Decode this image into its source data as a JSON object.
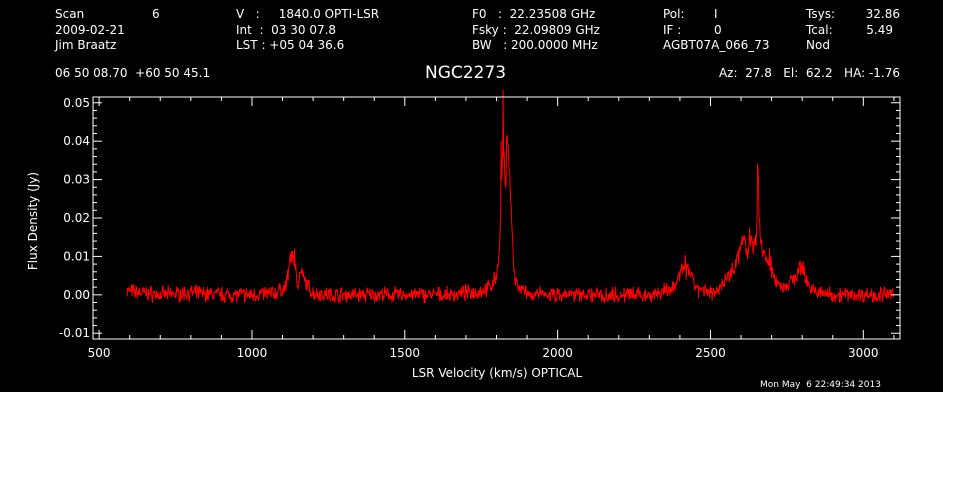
{
  "header": {
    "col1": [
      {
        "label": "Scan",
        "value": "6"
      },
      {
        "label": "2009-02-21",
        "value": ""
      },
      {
        "label": "Jim Braatz",
        "value": ""
      }
    ],
    "col2": [
      "V   :     1840.0 OPTI-LSR",
      "Int  :  03 30 07.8",
      "LST : +05 04 36.6"
    ],
    "col3": [
      "F0   :  22.23508 GHz",
      "Fsky :  22.09809 GHz",
      "BW   : 200.0000 MHz"
    ],
    "col4": [
      {
        "label": "Pol:",
        "value": "I"
      },
      {
        "label": "IF :",
        "value": "0"
      },
      {
        "label": "AGBT07A_066_73",
        "value": ""
      }
    ],
    "col5": [
      {
        "label": "Tsys:",
        "value": "32.86"
      },
      {
        "label": "Tcal:",
        "value": "5.49"
      },
      {
        "label": "Nod",
        "value": ""
      }
    ],
    "coords": "06 50 08.70  +60 50 45.1",
    "source": "NGC2273",
    "azelha": "Az:  27.8   El:  62.2   HA: -1.76"
  },
  "timestamp": "Mon May  6 22:49:34 2013",
  "colors": {
    "background": "#000000",
    "axes": "#ffffff",
    "spectrum": "#ff0000"
  },
  "chart_data": {
    "type": "line",
    "title": "NGC2273",
    "xlabel": "LSR Velocity (km/s) OPTICAL",
    "ylabel": "Flux Density (Jy)",
    "xlim": [
      480,
      3120
    ],
    "ylim": [
      -0.0115,
      0.0515
    ],
    "xticks": [
      500,
      1000,
      1500,
      2000,
      2500,
      3000
    ],
    "xtick_labels": [
      "500",
      "1000",
      "1500",
      "2000",
      "2500",
      "3000"
    ],
    "yticks": [
      -0.01,
      0.0,
      0.01,
      0.02,
      0.03,
      0.04,
      0.05
    ],
    "ytick_labels": [
      "-0.01",
      "0.00",
      "0.01",
      "0.02",
      "0.03",
      "0.04",
      "0.05"
    ],
    "grid": false,
    "series": [
      {
        "color": "#ff0000",
        "x": [
          590,
          700,
          800,
          900,
          1000,
          1080,
          1110,
          1125,
          1135,
          1142,
          1150,
          1160,
          1170,
          1185,
          1200,
          1260,
          1300,
          1350,
          1400,
          1450,
          1500,
          1550,
          1600,
          1650,
          1700,
          1750,
          1780,
          1800,
          1810,
          1815,
          1820,
          1825,
          1830,
          1835,
          1840,
          1845,
          1850,
          1855,
          1860,
          1870,
          1885,
          1900,
          1950,
          2000,
          2050,
          2100,
          2150,
          2200,
          2250,
          2300,
          2350,
          2380,
          2400,
          2420,
          2440,
          2460,
          2500,
          2530,
          2560,
          2590,
          2600,
          2610,
          2620,
          2630,
          2640,
          2650,
          2655,
          2660,
          2670,
          2690,
          2710,
          2740,
          2770,
          2790,
          2800,
          2815,
          2830,
          2860,
          2900,
          2950,
          3000,
          3050,
          3100
        ],
        "y": [
          0.001,
          0.0,
          0.0005,
          0.0,
          0.0,
          0.0005,
          0.002,
          0.009,
          0.011,
          0.007,
          0.003,
          0.006,
          0.004,
          0.002,
          0.0005,
          0.0,
          0.0,
          0.0,
          0.0,
          0.0,
          0.0,
          0.0,
          0.0,
          0.0,
          0.0005,
          0.001,
          0.002,
          0.005,
          0.012,
          0.025,
          0.035,
          0.038,
          0.026,
          0.041,
          0.036,
          0.028,
          0.018,
          0.01,
          0.004,
          0.002,
          0.001,
          0.0,
          0.0,
          0.0,
          0.0,
          0.0,
          0.0,
          0.0,
          0.0,
          0.0,
          0.001,
          0.002,
          0.005,
          0.007,
          0.004,
          0.001,
          0.0005,
          0.002,
          0.005,
          0.009,
          0.013,
          0.016,
          0.01,
          0.014,
          0.012,
          0.015,
          0.025,
          0.018,
          0.012,
          0.008,
          0.004,
          0.002,
          0.004,
          0.006,
          0.007,
          0.004,
          0.001,
          0.0005,
          0.0,
          0.0,
          0.0,
          0.0,
          0.0
        ]
      }
    ]
  }
}
